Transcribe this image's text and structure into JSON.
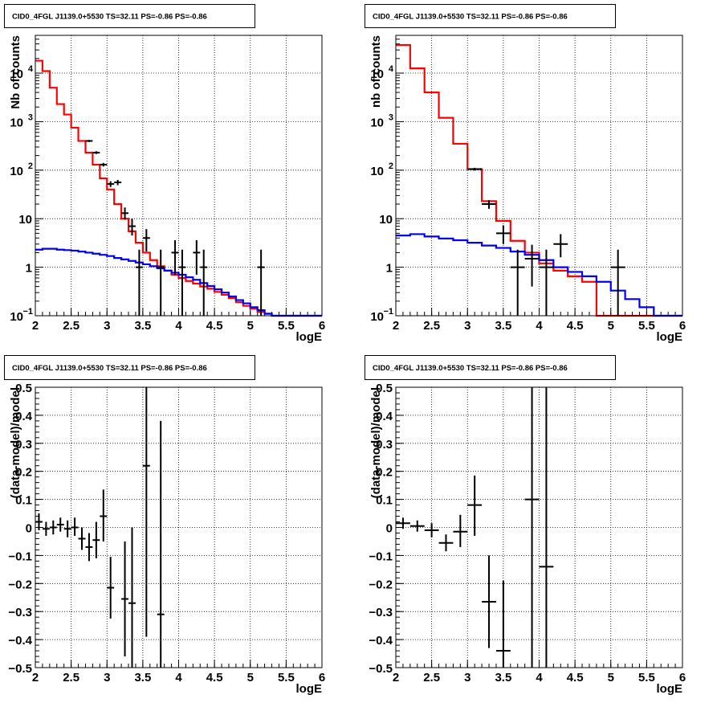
{
  "chart_data": [
    {
      "type": "histogram",
      "title": "CID0_4FGL J1139.0+5530 TS=32.11 PS=-0.86 PS=-0.86",
      "xlabel": "logE",
      "ylabel": "Nb of counts",
      "xlim": [
        2,
        6
      ],
      "ylim": [
        0.1,
        60000
      ],
      "log_y": true,
      "grid": true,
      "x_ticks": [
        "2",
        "2.5",
        "3",
        "3.5",
        "4",
        "4.5",
        "5",
        "5.5",
        "6"
      ],
      "y_ticks": [
        {
          "value": 0.1,
          "label": "10",
          "exp": "−1"
        },
        {
          "value": 1,
          "label": "1",
          "exp": ""
        },
        {
          "value": 10,
          "label": "10",
          "exp": ""
        },
        {
          "value": 100,
          "label": "10",
          "exp": "2"
        },
        {
          "value": 1000,
          "label": "10",
          "exp": "3"
        },
        {
          "value": 10000,
          "label": "10",
          "exp": "4"
        }
      ],
      "bin_edges": [
        2.0,
        2.1,
        2.2,
        2.3,
        2.4,
        2.5,
        2.6,
        2.7,
        2.8,
        2.9,
        3.0,
        3.1,
        3.2,
        3.3,
        3.4,
        3.5,
        3.6,
        3.7,
        3.8,
        3.9,
        4.0,
        4.1,
        4.2,
        4.3,
        4.4,
        4.5,
        4.6,
        4.7,
        4.8,
        4.9,
        5.0,
        5.1,
        5.2,
        5.3,
        5.4,
        5.5,
        5.6,
        5.7,
        5.8,
        5.9,
        6.0
      ],
      "series": [
        {
          "name": "",
          "kind": "step",
          "color": "#ff0000",
          "values": [
            18000,
            11000,
            5000,
            2300,
            1400,
            750,
            400,
            230,
            130,
            68,
            40,
            20,
            10,
            5.5,
            3.2,
            2.0,
            1.4,
            1.05,
            0.85,
            0.7,
            0.6,
            0.52,
            0.46,
            0.4,
            0.36,
            0.31,
            0.27,
            0.23,
            0.19,
            0.16,
            0.14,
            0.12,
            0.11,
            0.1,
            0.1,
            0.1,
            0.1,
            0.1,
            0.1,
            0.1
          ]
        },
        {
          "name": "",
          "kind": "step",
          "color": "#0000ee",
          "values": [
            2.3,
            2.4,
            2.4,
            2.3,
            2.25,
            2.2,
            2.1,
            2.0,
            1.9,
            1.8,
            1.7,
            1.55,
            1.45,
            1.35,
            1.25,
            1.15,
            1.05,
            0.95,
            0.85,
            0.77,
            0.7,
            0.62,
            0.55,
            0.47,
            0.41,
            0.35,
            0.3,
            0.25,
            0.21,
            0.18,
            0.15,
            0.13,
            0.11,
            0.1,
            0.1,
            0.1,
            0.1,
            0.1,
            0.1,
            0.1
          ]
        },
        {
          "name": "",
          "kind": "points",
          "color": "#000000",
          "points": [
            {
              "x": 2.75,
              "y": 400,
              "xerr": 0.05,
              "ylo": 380,
              "yhi": 420
            },
            {
              "x": 2.85,
              "y": 230,
              "xerr": 0.05,
              "ylo": 215,
              "yhi": 245
            },
            {
              "x": 2.95,
              "y": 130,
              "xerr": 0.05,
              "ylo": 119,
              "yhi": 141
            },
            {
              "x": 3.05,
              "y": 52,
              "xerr": 0.05,
              "ylo": 45,
              "yhi": 59
            },
            {
              "x": 3.15,
              "y": 56,
              "xerr": 0.05,
              "ylo": 49,
              "yhi": 63
            },
            {
              "x": 3.25,
              "y": 13,
              "xerr": 0.05,
              "ylo": 9.5,
              "yhi": 17
            },
            {
              "x": 3.35,
              "y": 7,
              "xerr": 0.05,
              "ylo": 4.5,
              "yhi": 10
            },
            {
              "x": 3.45,
              "y": 1,
              "xerr": 0.05,
              "ylo": 0.1,
              "yhi": 2.3
            },
            {
              "x": 3.55,
              "y": 4,
              "xerr": 0.05,
              "ylo": 2.1,
              "yhi": 6.1
            },
            {
              "x": 3.75,
              "y": 1,
              "xerr": 0.05,
              "ylo": 0.1,
              "yhi": 2.3
            },
            {
              "x": 3.95,
              "y": 2,
              "xerr": 0.05,
              "ylo": 0.7,
              "yhi": 3.6
            },
            {
              "x": 4.05,
              "y": 1,
              "xerr": 0.05,
              "ylo": 0.1,
              "yhi": 2.3
            },
            {
              "x": 4.25,
              "y": 2,
              "xerr": 0.05,
              "ylo": 0.7,
              "yhi": 3.6
            },
            {
              "x": 4.35,
              "y": 1,
              "xerr": 0.05,
              "ylo": 0.1,
              "yhi": 2.3
            },
            {
              "x": 5.15,
              "y": 1,
              "xerr": 0.05,
              "ylo": 0.1,
              "yhi": 2.3
            }
          ]
        }
      ]
    },
    {
      "type": "histogram",
      "title": "CID0_4FGL J1139.0+5530 TS=32.11 PS=-0.86 PS=-0.86",
      "xlabel": "logE",
      "ylabel": "nb of counts",
      "xlim": [
        2,
        6
      ],
      "ylim": [
        0.1,
        60000
      ],
      "log_y": true,
      "grid": true,
      "x_ticks": [
        "2",
        "2.5",
        "3",
        "3.5",
        "4",
        "4.5",
        "5",
        "5.5",
        "6"
      ],
      "y_ticks": [
        {
          "value": 0.1,
          "label": "10",
          "exp": "−1"
        },
        {
          "value": 1,
          "label": "1",
          "exp": ""
        },
        {
          "value": 10,
          "label": "10",
          "exp": ""
        },
        {
          "value": 100,
          "label": "10",
          "exp": "2"
        },
        {
          "value": 1000,
          "label": "10",
          "exp": "3"
        },
        {
          "value": 10000,
          "label": "10",
          "exp": "4"
        }
      ],
      "bin_edges": [
        2.0,
        2.2,
        2.4,
        2.6,
        2.8,
        3.0,
        3.2,
        3.4,
        3.6,
        3.8,
        4.0,
        4.2,
        4.4,
        4.6,
        4.8,
        5.0,
        5.2,
        5.4,
        5.6,
        5.8,
        6.0
      ],
      "series": [
        {
          "name": "",
          "kind": "step",
          "color": "#ff0000",
          "values": [
            38000,
            12500,
            4000,
            1200,
            350,
            105,
            23,
            9,
            3.5,
            2.0,
            1.2,
            0.85,
            0.65,
            0.5,
            0.1,
            0.1,
            0.1,
            0.1,
            0.1,
            0.1
          ]
        },
        {
          "name": "",
          "kind": "step",
          "color": "#0000ee",
          "values": [
            4.5,
            4.8,
            4.3,
            3.9,
            3.6,
            3.2,
            2.8,
            2.5,
            2.1,
            1.8,
            1.4,
            1.0,
            0.8,
            0.65,
            0.5,
            0.33,
            0.22,
            0.15,
            0.1,
            0.1
          ]
        },
        {
          "name": "",
          "kind": "points",
          "color": "#000000",
          "points": [
            {
              "x": 3.1,
              "y": 105,
              "xerr": 0.1,
              "ylo": 98,
              "yhi": 112
            },
            {
              "x": 3.3,
              "y": 20,
              "xerr": 0.1,
              "ylo": 16,
              "yhi": 24
            },
            {
              "x": 3.5,
              "y": 5,
              "xerr": 0.1,
              "ylo": 3,
              "yhi": 7.3
            },
            {
              "x": 3.7,
              "y": 1,
              "xerr": 0.1,
              "ylo": 0.1,
              "yhi": 2.3
            },
            {
              "x": 3.9,
              "y": 1.5,
              "xerr": 0.1,
              "ylo": 0.4,
              "yhi": 2.9
            },
            {
              "x": 4.1,
              "y": 1,
              "xerr": 0.1,
              "ylo": 0.1,
              "yhi": 2.3
            },
            {
              "x": 4.3,
              "y": 3,
              "xerr": 0.1,
              "ylo": 1.6,
              "yhi": 4.8
            },
            {
              "x": 5.1,
              "y": 1,
              "xerr": 0.1,
              "ylo": 0.1,
              "yhi": 2.3
            }
          ]
        }
      ]
    },
    {
      "type": "scatter",
      "title": "CID0_4FGL J1139.0+5530 TS=32.11 PS=-0.86 PS=-0.86",
      "xlabel": "logE",
      "ylabel": "(data-model)/model",
      "xlim": [
        2,
        6
      ],
      "ylim": [
        -0.5,
        0.5
      ],
      "log_y": false,
      "grid": true,
      "x_ticks": [
        "2",
        "2.5",
        "3",
        "3.5",
        "4",
        "4.5",
        "5",
        "5.5",
        "6"
      ],
      "y_ticks": [
        {
          "value": 0.5,
          "label": "0.5",
          "exp": ""
        },
        {
          "value": 0.4,
          "label": "0.4",
          "exp": ""
        },
        {
          "value": 0.3,
          "label": "0.3",
          "exp": ""
        },
        {
          "value": 0.2,
          "label": "0.2",
          "exp": ""
        },
        {
          "value": 0.1,
          "label": "0.1",
          "exp": ""
        },
        {
          "value": 0,
          "label": "0",
          "exp": ""
        },
        {
          "value": -0.1,
          "label": "−0.1",
          "exp": ""
        },
        {
          "value": -0.2,
          "label": "−0.2",
          "exp": ""
        },
        {
          "value": -0.3,
          "label": "−0.3",
          "exp": ""
        },
        {
          "value": -0.4,
          "label": "−0.4",
          "exp": ""
        },
        {
          "value": -0.5,
          "label": "−0.5",
          "exp": ""
        }
      ],
      "series": [
        {
          "name": "",
          "kind": "points",
          "color": "#000000",
          "points": [
            {
              "x": 2.05,
              "y": 0.02,
              "xerr": 0.05,
              "ylo": -0.01,
              "yhi": 0.05
            },
            {
              "x": 2.15,
              "y": -0.005,
              "xerr": 0.05,
              "ylo": -0.03,
              "yhi": 0.02
            },
            {
              "x": 2.25,
              "y": 0.0,
              "xerr": 0.05,
              "ylo": -0.025,
              "yhi": 0.025
            },
            {
              "x": 2.35,
              "y": 0.01,
              "xerr": 0.05,
              "ylo": -0.015,
              "yhi": 0.035
            },
            {
              "x": 2.45,
              "y": -0.005,
              "xerr": 0.05,
              "ylo": -0.035,
              "yhi": 0.025
            },
            {
              "x": 2.55,
              "y": 0.0,
              "xerr": 0.05,
              "ylo": -0.03,
              "yhi": 0.035
            },
            {
              "x": 2.65,
              "y": -0.04,
              "xerr": 0.05,
              "ylo": -0.08,
              "yhi": 0.0
            },
            {
              "x": 2.75,
              "y": -0.07,
              "xerr": 0.05,
              "ylo": -0.12,
              "yhi": -0.02
            },
            {
              "x": 2.85,
              "y": -0.045,
              "xerr": 0.05,
              "ylo": -0.11,
              "yhi": 0.02
            },
            {
              "x": 2.95,
              "y": 0.04,
              "xerr": 0.05,
              "ylo": -0.05,
              "yhi": 0.135
            },
            {
              "x": 3.05,
              "y": -0.215,
              "xerr": 0.05,
              "ylo": -0.325,
              "yhi": -0.105
            },
            {
              "x": 3.25,
              "y": -0.255,
              "xerr": 0.05,
              "ylo": -0.46,
              "yhi": -0.05
            },
            {
              "x": 3.35,
              "y": -0.27,
              "xerr": 0.05,
              "ylo": -0.5,
              "yhi": 0.0
            },
            {
              "x": 3.55,
              "y": 0.22,
              "xerr": 0.05,
              "ylo": -0.39,
              "yhi": 0.5
            },
            {
              "x": 3.75,
              "y": -0.31,
              "xerr": 0.05,
              "ylo": -0.5,
              "yhi": 0.38
            }
          ]
        }
      ]
    },
    {
      "type": "scatter",
      "title": "CID0_4FGL J1139.0+5530 TS=32.11 PS=-0.86 PS=-0.86",
      "xlabel": "logE",
      "ylabel": "(data-model)/model",
      "xlim": [
        2,
        6
      ],
      "ylim": [
        -0.5,
        0.5
      ],
      "log_y": false,
      "grid": true,
      "x_ticks": [
        "2",
        "2.5",
        "3",
        "3.5",
        "4",
        "4.5",
        "5",
        "5.5",
        "6"
      ],
      "y_ticks": [
        {
          "value": 0.5,
          "label": "0.5",
          "exp": ""
        },
        {
          "value": 0.4,
          "label": "0.4",
          "exp": ""
        },
        {
          "value": 0.3,
          "label": "0.3",
          "exp": ""
        },
        {
          "value": 0.2,
          "label": "0.2",
          "exp": ""
        },
        {
          "value": 0.1,
          "label": "0.1",
          "exp": ""
        },
        {
          "value": 0,
          "label": "0",
          "exp": ""
        },
        {
          "value": -0.1,
          "label": "−0.1",
          "exp": ""
        },
        {
          "value": -0.2,
          "label": "−0.2",
          "exp": ""
        },
        {
          "value": -0.3,
          "label": "−0.3",
          "exp": ""
        },
        {
          "value": -0.4,
          "label": "−0.4",
          "exp": ""
        },
        {
          "value": -0.5,
          "label": "−0.5",
          "exp": ""
        }
      ],
      "series": [
        {
          "name": "",
          "kind": "points",
          "color": "#000000",
          "points": [
            {
              "x": 2.1,
              "y": 0.015,
              "xerr": 0.1,
              "ylo": -0.005,
              "yhi": 0.035
            },
            {
              "x": 2.3,
              "y": 0.005,
              "xerr": 0.1,
              "ylo": -0.015,
              "yhi": 0.025
            },
            {
              "x": 2.5,
              "y": -0.01,
              "xerr": 0.1,
              "ylo": -0.035,
              "yhi": 0.015
            },
            {
              "x": 2.7,
              "y": -0.055,
              "xerr": 0.1,
              "ylo": -0.085,
              "yhi": -0.025
            },
            {
              "x": 2.9,
              "y": -0.015,
              "xerr": 0.1,
              "ylo": -0.07,
              "yhi": 0.045
            },
            {
              "x": 3.1,
              "y": 0.08,
              "xerr": 0.1,
              "ylo": -0.03,
              "yhi": 0.185
            },
            {
              "x": 3.3,
              "y": -0.265,
              "xerr": 0.1,
              "ylo": -0.43,
              "yhi": -0.1
            },
            {
              "x": 3.5,
              "y": -0.44,
              "xerr": 0.1,
              "ylo": -0.5,
              "yhi": -0.19
            },
            {
              "x": 3.9,
              "y": 0.1,
              "xerr": 0.1,
              "ylo": -0.5,
              "yhi": 0.5
            },
            {
              "x": 4.1,
              "y": -0.14,
              "xerr": 0.1,
              "ylo": -0.5,
              "yhi": 0.5
            }
          ]
        }
      ]
    }
  ]
}
